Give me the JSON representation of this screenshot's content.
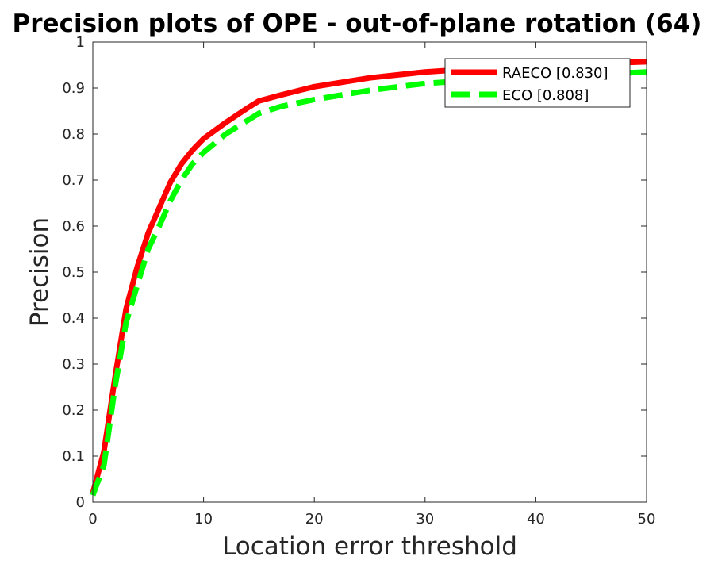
{
  "chart_data": {
    "type": "line",
    "title": "Precision plots of OPE - out-of-plane rotation (64)",
    "xlabel": "Location error threshold",
    "ylabel": "Precision",
    "xlim": [
      0,
      50
    ],
    "ylim": [
      0,
      1
    ],
    "xticks": [
      0,
      10,
      20,
      30,
      40,
      50
    ],
    "yticks": [
      0,
      0.1,
      0.2,
      0.3,
      0.4,
      0.5,
      0.6,
      0.7,
      0.8,
      0.9,
      1
    ],
    "grid": false,
    "legend_position": "top-right",
    "series": [
      {
        "name": "RAECO [0.830]",
        "color": "#ff0000",
        "style": "solid",
        "x": [
          0,
          1,
          2,
          3,
          4,
          5,
          6,
          7,
          8,
          9,
          10,
          12,
          14,
          15,
          17,
          20,
          25,
          30,
          35,
          40,
          45,
          50
        ],
        "values": [
          0.02,
          0.11,
          0.27,
          0.42,
          0.51,
          0.585,
          0.64,
          0.695,
          0.735,
          0.765,
          0.79,
          0.825,
          0.857,
          0.872,
          0.885,
          0.903,
          0.922,
          0.935,
          0.943,
          0.948,
          0.953,
          0.957
        ]
      },
      {
        "name": "ECO [0.808]",
        "color": "#00ff00",
        "style": "dashed",
        "x": [
          0,
          1,
          2,
          3,
          4,
          5,
          6,
          7,
          8,
          9,
          10,
          12,
          14,
          15,
          17,
          20,
          25,
          30,
          35,
          40,
          45,
          50
        ],
        "values": [
          0.015,
          0.08,
          0.25,
          0.39,
          0.47,
          0.55,
          0.6,
          0.655,
          0.7,
          0.735,
          0.76,
          0.8,
          0.83,
          0.845,
          0.86,
          0.875,
          0.895,
          0.91,
          0.918,
          0.923,
          0.929,
          0.935
        ]
      }
    ]
  }
}
